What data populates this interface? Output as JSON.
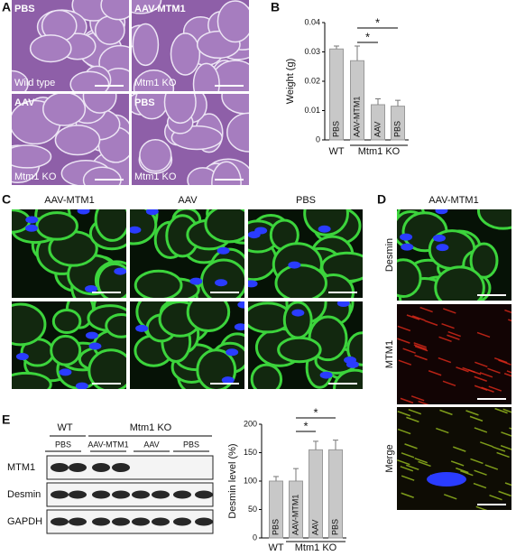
{
  "figure": {
    "panel_labels": [
      "A",
      "B",
      "C",
      "D",
      "E"
    ]
  },
  "panel_a": {
    "labels": [
      "PBS",
      "AAV-MTM1",
      "AAV",
      "PBS"
    ],
    "genotype_labels": [
      "Wild type",
      "Mtm1 KO",
      "Mtm1 KO",
      "Mtm1 KO"
    ]
  },
  "panel_c": {
    "columns": [
      "AAV-MTM1",
      "AAV",
      "PBS"
    ]
  },
  "panel_d": {
    "title": "AAV-MTM1",
    "rows": [
      "Desmin",
      "MTM1",
      "Merge"
    ]
  },
  "panel_e_blot": {
    "groups": [
      "WT",
      "Mtm1 KO"
    ],
    "lanes": [
      "PBS",
      "AAV-MTM1",
      "AAV",
      "PBS"
    ],
    "rows": [
      "MTM1",
      "Desmin",
      "GAPDH"
    ]
  },
  "chart_data": [
    {
      "type": "bar",
      "y_label": "Weight (g)",
      "categories": [
        "PBS",
        "AAV-MTM1",
        "AAV",
        "PBS"
      ],
      "group_labels": [
        "WT",
        "Mtm1 KO"
      ],
      "values": [
        0.031,
        0.027,
        0.012,
        0.0115
      ],
      "errors": [
        0.001,
        0.005,
        0.002,
        0.002
      ],
      "color": "#c8c8c8",
      "ylim": [
        0,
        0.04
      ],
      "yticks": [
        0,
        0.01,
        0.02,
        0.03,
        0.04
      ],
      "annotations": [
        "*",
        "*"
      ]
    },
    {
      "type": "bar",
      "y_label": "Desmin level (%)",
      "categories": [
        "PBS",
        "AAV-MTM1",
        "AAV",
        "PBS"
      ],
      "group_labels": [
        "WT",
        "Mtm1 KO"
      ],
      "values": [
        100,
        100,
        155,
        155
      ],
      "errors": [
        8,
        22,
        15,
        17
      ],
      "color": "#c8c8c8",
      "ylim": [
        0,
        200
      ],
      "yticks": [
        0,
        50,
        100,
        150,
        200
      ],
      "annotations": [
        "*",
        "*"
      ]
    }
  ]
}
